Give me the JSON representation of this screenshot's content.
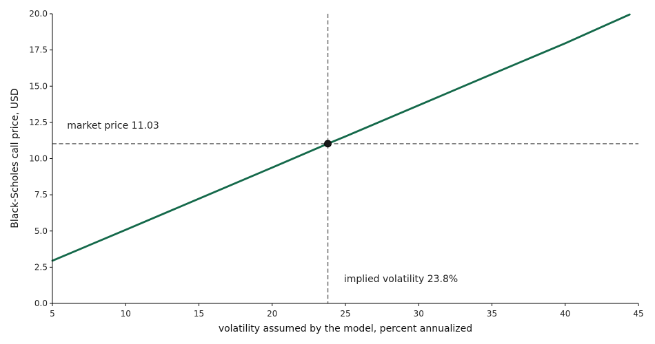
{
  "chart_data": {
    "type": "line",
    "title": "",
    "xlabel": "volatility assumed by the model, percent annualized",
    "ylabel": "Black-Scholes call price, USD",
    "xlim": [
      5,
      45
    ],
    "ylim": [
      0,
      20
    ],
    "x_ticks": [
      5,
      10,
      15,
      20,
      25,
      30,
      35,
      40,
      45
    ],
    "y_ticks": [
      0.0,
      2.5,
      5.0,
      7.5,
      10.0,
      12.5,
      15.0,
      17.5,
      20.0
    ],
    "x_tick_labels": [
      "5",
      "10",
      "15",
      "20",
      "25",
      "30",
      "35",
      "40",
      "45"
    ],
    "y_tick_labels": [
      "0.0",
      "2.5",
      "5.0",
      "7.5",
      "10.0",
      "12.5",
      "15.0",
      "17.5",
      "20.0"
    ],
    "grid": false,
    "series": [
      {
        "x": [
          5,
          10,
          15,
          20,
          23.8,
          25,
          30,
          35,
          40,
          44.4
        ],
        "y": [
          2.95,
          5.08,
          7.23,
          9.38,
          11.03,
          11.53,
          13.68,
          15.83,
          17.96,
          19.95
        ],
        "color": "#14694a"
      }
    ],
    "reference_lines": {
      "horizontal": {
        "y": 11.03,
        "style": "dashed",
        "color": "#6b6b6b"
      },
      "vertical": {
        "x": 23.8,
        "style": "dashed",
        "color": "#6b6b6b"
      }
    },
    "marker": {
      "x": 23.8,
      "y": 11.03,
      "color": "#1a1a1a"
    },
    "annotations": [
      {
        "text": "market price  11.03",
        "x": 6,
        "y": 12.3
      },
      {
        "text": "implied volatility  23.8%",
        "x": 24.9,
        "y": 1.7
      }
    ]
  }
}
